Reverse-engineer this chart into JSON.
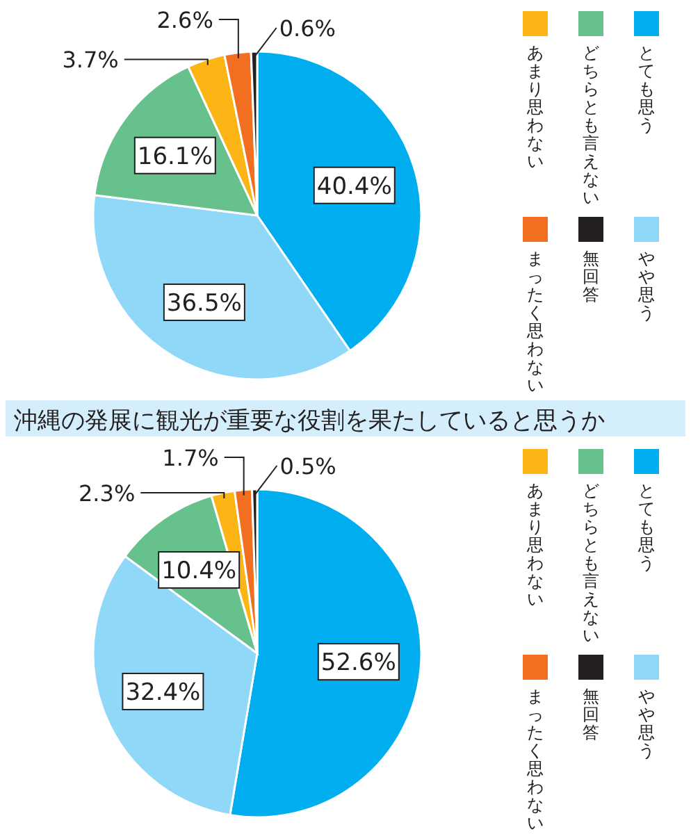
{
  "chart_data": [
    {
      "type": "pie",
      "categories": [
        "とても思う",
        "やや思う",
        "どちらとも言えない",
        "あまり思わない",
        "まったく思わない",
        "無回答"
      ],
      "values": [
        40.4,
        36.5,
        16.1,
        3.7,
        2.6,
        0.6
      ],
      "value_labels": [
        "40.4%",
        "36.5%",
        "16.1%",
        "3.7%",
        "2.6%",
        "0.6%"
      ],
      "colors": [
        "#00aeef",
        "#8fd8f8",
        "#66c18c",
        "#fcb514",
        "#f26f21",
        "#231f20"
      ],
      "legend": "right"
    },
    {
      "type": "pie",
      "title": "沖縄の発展に観光が重要な役割を果たしていると思うか",
      "categories": [
        "とても思う",
        "やや思う",
        "どちらとも言えない",
        "あまり思わない",
        "まったく思わない",
        "無回答"
      ],
      "values": [
        52.6,
        32.4,
        10.4,
        2.3,
        1.7,
        0.5
      ],
      "value_labels": [
        "52.6%",
        "32.4%",
        "10.4%",
        "2.3%",
        "1.7%",
        "0.5%"
      ],
      "colors": [
        "#00aeef",
        "#8fd8f8",
        "#66c18c",
        "#fcb514",
        "#f26f21",
        "#231f20"
      ],
      "legend": "right"
    }
  ]
}
